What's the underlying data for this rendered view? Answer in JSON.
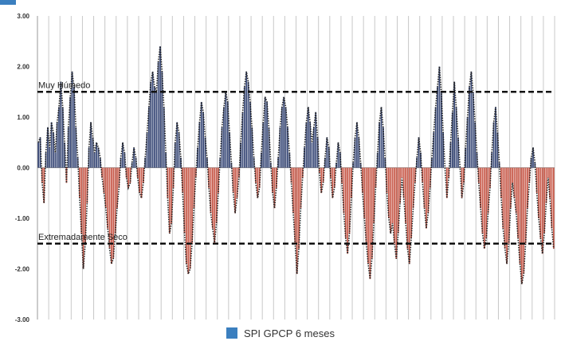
{
  "chart_data": {
    "type": "bar",
    "title": "",
    "xlabel": "",
    "ylabel": "",
    "ylim": [
      -3,
      3
    ],
    "yticks": [
      "-3.00",
      "-2.00",
      "-1.00",
      "0.00",
      "1.00",
      "2.00",
      "3.00"
    ],
    "ytick_values": [
      -3,
      -2,
      -1,
      0,
      1,
      2,
      3
    ],
    "grid": "vertical",
    "legend_position": "bottom",
    "colors": {
      "positive": "#3a4a78",
      "negative": "#c85a4a",
      "reference": "#111111",
      "grid": "#c8c8c8",
      "legend_swatch": "#3b7fbf",
      "axis": "#999999"
    },
    "series": [
      {
        "name": "SPI GPCP 6 meses",
        "values": [
          0.5,
          0.6,
          -0.3,
          -0.7,
          0.3,
          0.8,
          0.4,
          0.9,
          0.7,
          0.3,
          0.9,
          1.2,
          1.7,
          1.2,
          0.5,
          -0.3,
          0.8,
          1.4,
          1.9,
          1.6,
          0.8,
          0.2,
          -0.6,
          -1.3,
          -2.0,
          -1.5,
          -0.7,
          0.4,
          0.9,
          0.6,
          0.3,
          0.5,
          0.4,
          0.2,
          -0.2,
          -0.5,
          -0.8,
          -1.2,
          -1.6,
          -1.9,
          -1.8,
          -1.3,
          -0.8,
          -0.4,
          0.2,
          0.5,
          0.3,
          -0.2,
          -0.4,
          -0.3,
          0.1,
          0.4,
          0.2,
          -0.2,
          -0.5,
          -0.6,
          -0.3,
          0.2,
          0.7,
          1.2,
          1.7,
          1.9,
          1.6,
          1.5,
          2.1,
          2.4,
          1.9,
          1.2,
          0.3,
          -0.6,
          -1.3,
          -1.1,
          -0.4,
          0.5,
          0.9,
          0.7,
          0.2,
          -0.5,
          -1.3,
          -1.9,
          -2.1,
          -2.0,
          -1.5,
          -0.8,
          -0.2,
          0.4,
          0.9,
          1.3,
          1.1,
          0.6,
          0.2,
          -0.4,
          -0.9,
          -1.2,
          -1.5,
          -1.1,
          -0.5,
          0.2,
          0.8,
          1.2,
          1.5,
          1.3,
          0.7,
          0.1,
          -0.5,
          -0.9,
          -0.6,
          -0.2,
          0.5,
          1.1,
          1.6,
          1.9,
          1.7,
          1.3,
          0.8,
          0.2,
          -0.3,
          -0.6,
          -0.4,
          0.3,
          0.9,
          1.4,
          1.3,
          0.8,
          0.1,
          -0.5,
          -0.8,
          -0.4,
          0.2,
          0.8,
          1.2,
          1.4,
          1.2,
          0.8,
          0.3,
          -0.3,
          -0.9,
          -1.5,
          -2.1,
          -1.6,
          -0.8,
          -0.2,
          0.4,
          0.9,
          1.2,
          0.9,
          0.5,
          0.8,
          1.1,
          0.6,
          -0.1,
          -0.5,
          -0.3,
          0.2,
          0.6,
          0.4,
          -0.2,
          -0.6,
          -0.4,
          0.1,
          0.5,
          0.3,
          -0.3,
          -0.9,
          -1.4,
          -1.7,
          -1.3,
          -0.6,
          0.1,
          0.6,
          0.9,
          0.6,
          0.1,
          -0.5,
          -1.0,
          -1.5,
          -1.9,
          -2.2,
          -1.8,
          -1.1,
          -0.4,
          0.3,
          0.9,
          1.2,
          0.8,
          0.2,
          -0.5,
          -1.0,
          -1.3,
          -1.1,
          -1.5,
          -1.8,
          -1.3,
          -0.7,
          -0.2,
          -0.6,
          -1.1,
          -1.6,
          -1.9,
          -1.4,
          -0.8,
          -0.3,
          0.2,
          0.6,
          0.3,
          -0.3,
          -0.8,
          -1.2,
          -0.9,
          -0.4,
          0.2,
          0.7,
          1.2,
          1.6,
          2.0,
          1.5,
          0.7,
          0.0,
          -0.6,
          -0.2,
          0.5,
          1.1,
          1.7,
          1.2,
          0.6,
          0.0,
          -0.6,
          -0.3,
          0.4,
          1.0,
          1.6,
          1.9,
          1.5,
          0.9,
          0.3,
          -0.3,
          -0.8,
          -1.3,
          -1.6,
          -1.4,
          -0.9,
          -0.4,
          0.3,
          0.9,
          1.2,
          0.7,
          0.1,
          -0.6,
          -1.2,
          -1.6,
          -1.9,
          -1.5,
          -0.8,
          -0.3,
          -0.6,
          -0.9,
          -1.4,
          -1.9,
          -2.3,
          -2.1,
          -1.5,
          -0.8,
          -0.3,
          0.2,
          0.4,
          0.1,
          -0.5,
          -1.0,
          -1.4,
          -1.7,
          -1.3,
          -0.7,
          -0.2,
          -0.6,
          -1.2,
          -1.6
        ]
      }
    ],
    "reference_lines": [
      {
        "label": "Muy Húmedo",
        "value": 1.5
      },
      {
        "label": "Extremadamente Seco",
        "value": -1.5
      }
    ]
  }
}
